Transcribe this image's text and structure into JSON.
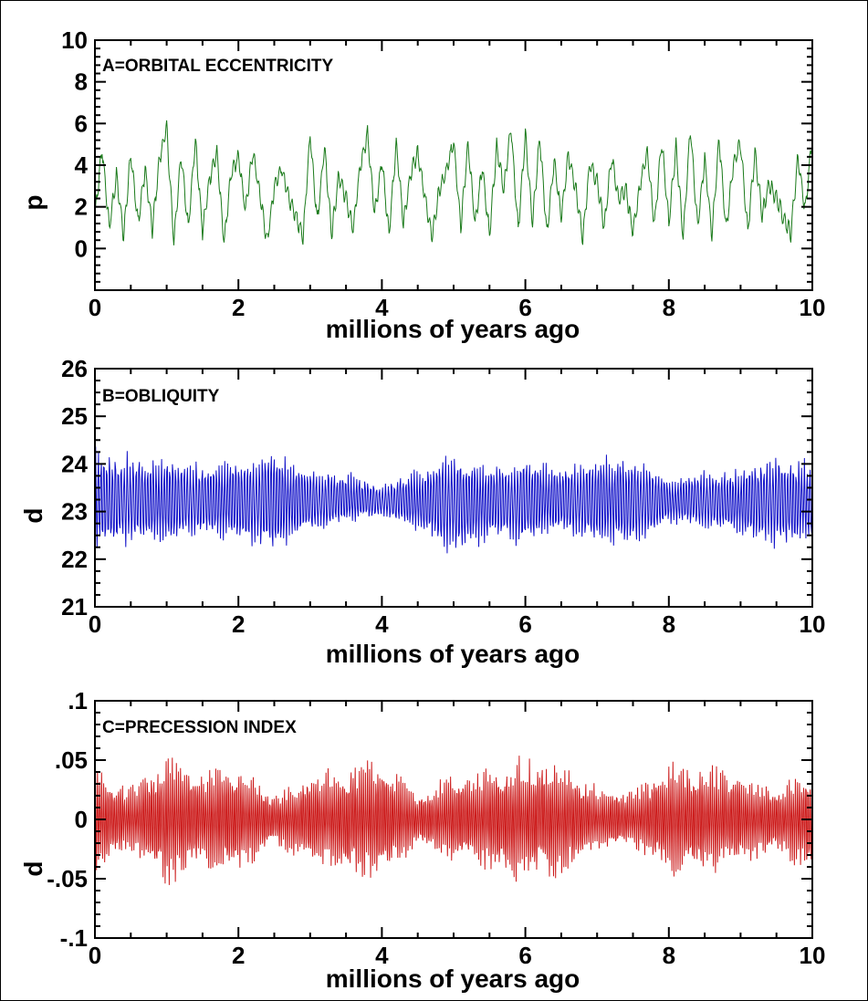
{
  "chart_data": [
    {
      "type": "line",
      "title": "A=ORBITAL ECCENTRICITY",
      "xlabel": "millions of years ago",
      "ylabel": "p",
      "xlim": [
        0,
        10
      ],
      "ylim": [
        -2,
        10
      ],
      "xticks": [
        "0",
        "2",
        "4",
        "6",
        "8",
        "10"
      ],
      "yticks": [
        "0",
        "2",
        "4",
        "6",
        "8",
        "10"
      ],
      "ytick_values": [
        0,
        2,
        4,
        6,
        8,
        10
      ],
      "color": "#1a7a1a",
      "series": [
        {
          "x": [
            0,
            0.1,
            0.2,
            0.3,
            0.4,
            0.5,
            0.6,
            0.7,
            0.8,
            0.9,
            1.0,
            1.1,
            1.2,
            1.3,
            1.4,
            1.5,
            1.6,
            1.7,
            1.8,
            1.9,
            2.0,
            2.1,
            2.2,
            2.3,
            2.4,
            2.5,
            2.6,
            2.7,
            2.8,
            2.9,
            3.0,
            3.1,
            3.2,
            3.3,
            3.4,
            3.5,
            3.6,
            3.7,
            3.8,
            3.9,
            4.0,
            4.1,
            4.2,
            4.3,
            4.4,
            4.5,
            4.6,
            4.7,
            4.8,
            4.9,
            5.0,
            5.1,
            5.2,
            5.3,
            5.4,
            5.5,
            5.6,
            5.7,
            5.8,
            5.9,
            6.0,
            6.1,
            6.2,
            6.3,
            6.4,
            6.5,
            6.6,
            6.7,
            6.8,
            6.9,
            7.0,
            7.1,
            7.2,
            7.3,
            7.4,
            7.5,
            7.6,
            7.7,
            7.8,
            7.9,
            8.0,
            8.1,
            8.2,
            8.3,
            8.4,
            8.5,
            8.6,
            8.7,
            8.8,
            8.9,
            9.0,
            9.1,
            9.2,
            9.3,
            9.4,
            9.5,
            9.6,
            9.7,
            9.8,
            9.9,
            10.0
          ],
          "values": [
            1.5,
            4.8,
            1.0,
            3.5,
            0.6,
            4.6,
            1.2,
            3.8,
            0.9,
            4.3,
            5.8,
            0.3,
            4.5,
            1.0,
            5.2,
            0.8,
            3.4,
            4.6,
            0.3,
            3.6,
            4.4,
            1.8,
            4.7,
            2.6,
            0.3,
            2.9,
            3.9,
            2.4,
            1.6,
            0.5,
            5.5,
            1.3,
            4.9,
            0.7,
            3.5,
            2.4,
            0.9,
            4.0,
            5.5,
            1.6,
            4.2,
            0.7,
            5.1,
            1.2,
            3.6,
            4.6,
            2.4,
            0.6,
            2.8,
            3.7,
            5.1,
            1.0,
            5.0,
            1.2,
            3.9,
            0.6,
            4.9,
            2.8,
            5.8,
            0.9,
            5.5,
            1.2,
            5.4,
            0.7,
            4.2,
            1.6,
            4.5,
            2.9,
            0.5,
            4.1,
            3.2,
            1.0,
            4.4,
            2.4,
            2.9,
            0.7,
            3.1,
            4.6,
            1.1,
            5.2,
            1.2,
            4.9,
            0.5,
            5.8,
            1.0,
            4.3,
            0.6,
            5.3,
            0.9,
            4.1,
            5.0,
            0.8,
            4.6,
            1.6,
            3.1,
            2.4,
            1.5,
            0.7,
            4.4,
            1.8,
            5.4
          ]
        }
      ]
    },
    {
      "type": "line",
      "title": "B=OBLIQUITY",
      "xlabel": "millions of years ago",
      "ylabel": "d",
      "xlim": [
        0,
        10
      ],
      "ylim": [
        21,
        26
      ],
      "xticks": [
        "0",
        "2",
        "4",
        "6",
        "8",
        "10"
      ],
      "yticks": [
        "21",
        "22",
        "23",
        "24",
        "25",
        "26"
      ],
      "ytick_values": [
        21,
        22,
        23,
        24,
        25,
        26
      ],
      "color": "#1010c8",
      "series": [
        {
          "center": 23.2,
          "x": [
            0,
            0.5,
            1.0,
            1.5,
            2.0,
            2.5,
            3.0,
            3.5,
            4.0,
            4.5,
            5.0,
            5.5,
            6.0,
            6.5,
            7.0,
            7.5,
            8.0,
            8.5,
            9.0,
            9.5,
            10.0
          ],
          "max": [
            24.4,
            24.3,
            24.3,
            24.1,
            24.2,
            24.4,
            24.0,
            23.9,
            23.6,
            24.0,
            24.3,
            24.1,
            24.2,
            24.0,
            24.3,
            24.3,
            23.8,
            23.9,
            24.0,
            24.3,
            24.1
          ],
          "min": [
            22.1,
            22.2,
            22.3,
            22.4,
            22.3,
            22.0,
            22.5,
            22.7,
            22.9,
            22.5,
            22.0,
            22.3,
            22.2,
            22.5,
            22.2,
            22.2,
            22.7,
            22.6,
            22.4,
            22.1,
            22.3
          ]
        }
      ]
    },
    {
      "type": "line",
      "title": "C=PRECESSION INDEX",
      "xlabel": "millions of years ago",
      "ylabel": "d",
      "xlim": [
        0,
        10
      ],
      "ylim": [
        -0.1,
        0.1
      ],
      "xticks": [
        "0",
        "2",
        "4",
        "6",
        "8",
        "10"
      ],
      "yticks": [
        ".1",
        ".05",
        "0",
        "-.05",
        "-.1"
      ],
      "ytick_values": [
        0.1,
        0.05,
        0,
        -0.05,
        -0.1
      ],
      "color": "#cc1a1a",
      "series": [
        {
          "x": [
            0,
            0.5,
            1.0,
            1.5,
            2.0,
            2.5,
            3.0,
            3.5,
            4.0,
            4.5,
            5.0,
            5.5,
            6.0,
            6.5,
            7.0,
            7.5,
            8.0,
            8.5,
            9.0,
            9.5,
            10.0
          ],
          "amplitude": [
            0.045,
            0.028,
            0.058,
            0.04,
            0.05,
            0.022,
            0.04,
            0.048,
            0.052,
            0.025,
            0.04,
            0.045,
            0.058,
            0.05,
            0.03,
            0.025,
            0.05,
            0.048,
            0.04,
            0.03,
            0.048
          ]
        }
      ]
    }
  ]
}
